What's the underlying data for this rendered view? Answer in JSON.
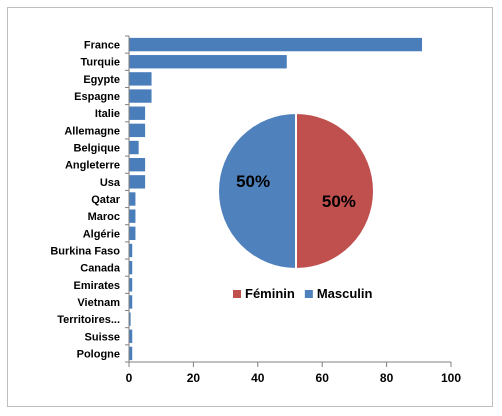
{
  "chart_data": [
    {
      "type": "bar",
      "orientation": "horizontal",
      "categories": [
        "France",
        "Turquie",
        "Egypte",
        "Espagne",
        "Italie",
        "Allemagne",
        "Belgique",
        "Angleterre",
        "Usa",
        "Qatar",
        "Maroc",
        "Algérie",
        "Burkina Faso",
        "Canada",
        "Emirates",
        "Vietnam",
        "Territoires...",
        "Suisse",
        "Pologne"
      ],
      "values": [
        91,
        49,
        7,
        7,
        5,
        5,
        3,
        5,
        5,
        2,
        2,
        2,
        1,
        1,
        1,
        1,
        0.5,
        1,
        1
      ],
      "xlim": [
        0,
        100
      ],
      "xticks": [
        0,
        20,
        40,
        60,
        80,
        100
      ],
      "color": "#4a7ebb",
      "grid": false
    },
    {
      "type": "pie",
      "labels": [
        "Féminin",
        "Masculin"
      ],
      "values": [
        50,
        50
      ],
      "value_labels": [
        "50%",
        "50%"
      ],
      "colors": [
        "#c0504d",
        "#4f81bd"
      ],
      "legend": "bottom"
    }
  ]
}
